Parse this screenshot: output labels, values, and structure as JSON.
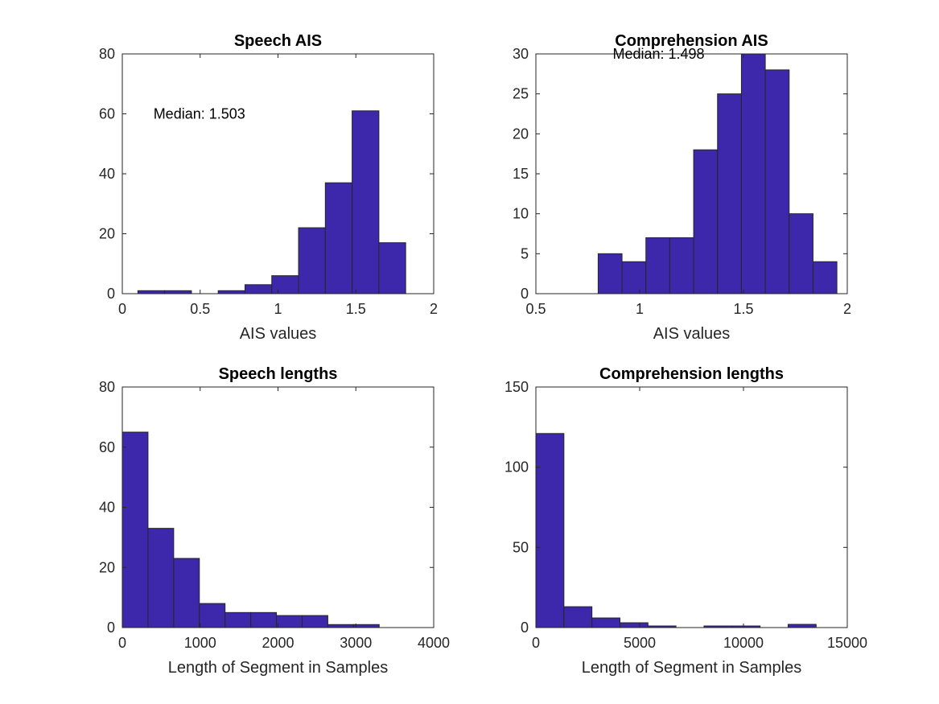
{
  "colors": {
    "bar_fill": "#3d27ab",
    "bar_edge": "#262626",
    "axis": "#262626"
  },
  "chart_data": [
    {
      "type": "bar",
      "title": "Speech AIS",
      "xlabel": "AIS values",
      "ylabel": "",
      "xlim": [
        0,
        2
      ],
      "ylim": [
        0,
        80
      ],
      "xticks": [
        0,
        0.5,
        1,
        1.5,
        2
      ],
      "xtick_labels": [
        "0",
        "0.5",
        "1",
        "1.5",
        "2"
      ],
      "yticks": [
        0,
        20,
        40,
        60,
        80
      ],
      "ytick_labels": [
        "0",
        "20",
        "40",
        "60",
        "80"
      ],
      "bin_edges": [
        0.1,
        0.272,
        0.444,
        0.616,
        0.788,
        0.96,
        1.132,
        1.304,
        1.476,
        1.648,
        1.82
      ],
      "values": [
        1,
        1,
        0,
        1,
        3,
        6,
        22,
        37,
        61,
        17
      ],
      "annotation": {
        "text": "Median: 1.503",
        "x": 0.2,
        "y": 60
      },
      "grid": false
    },
    {
      "type": "bar",
      "title": "Comprehension AIS",
      "xlabel": "AIS values",
      "ylabel": "",
      "xlim": [
        0.5,
        2
      ],
      "ylim": [
        0,
        30
      ],
      "xticks": [
        0.5,
        1,
        1.5,
        2
      ],
      "xtick_labels": [
        "0.5",
        "1",
        "1.5",
        "2"
      ],
      "yticks": [
        0,
        5,
        10,
        15,
        20,
        25,
        30
      ],
      "ytick_labels": [
        "0",
        "5",
        "10",
        "15",
        "20",
        "25",
        "30"
      ],
      "bin_edges": [
        0.8,
        0.915,
        1.03,
        1.145,
        1.26,
        1.375,
        1.49,
        1.605,
        1.72,
        1.835,
        1.95
      ],
      "values": [
        5,
        4,
        7,
        7,
        18,
        25,
        30,
        28,
        10,
        4
      ],
      "annotation": {
        "text": "Median: 1.498",
        "x": 0.87,
        "y": 30
      },
      "grid": false
    },
    {
      "type": "bar",
      "title": "Speech lengths",
      "xlabel": "Length of Segment in Samples",
      "ylabel": "",
      "xlim": [
        0,
        4000
      ],
      "ylim": [
        0,
        80
      ],
      "xticks": [
        0,
        1000,
        2000,
        3000,
        4000
      ],
      "xtick_labels": [
        "0",
        "1000",
        "2000",
        "3000",
        "4000"
      ],
      "yticks": [
        0,
        20,
        40,
        60,
        80
      ],
      "ytick_labels": [
        "0",
        "20",
        "40",
        "60",
        "80"
      ],
      "bin_edges": [
        0,
        330,
        660,
        990,
        1320,
        1650,
        1980,
        2310,
        2640,
        2970,
        3300
      ],
      "values": [
        65,
        33,
        23,
        8,
        5,
        5,
        4,
        4,
        1,
        1
      ],
      "grid": false
    },
    {
      "type": "bar",
      "title": "Comprehension lengths",
      "xlabel": "Length of Segment in Samples",
      "ylabel": "",
      "xlim": [
        0,
        15000
      ],
      "ylim": [
        0,
        150
      ],
      "xticks": [
        0,
        5000,
        10000,
        15000
      ],
      "xtick_labels": [
        "0",
        "5000",
        "10000",
        "15000"
      ],
      "yticks": [
        0,
        50,
        100,
        150
      ],
      "ytick_labels": [
        "0",
        "50",
        "100",
        "150"
      ],
      "bin_edges": [
        0,
        1350,
        2700,
        4050,
        5400,
        6750,
        8100,
        9450,
        10800,
        12150,
        13500
      ],
      "values": [
        121,
        13,
        6,
        3,
        1,
        0,
        1,
        1,
        0,
        2
      ],
      "grid": false
    }
  ]
}
